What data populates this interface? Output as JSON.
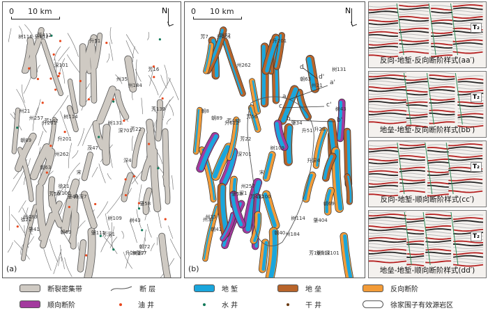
{
  "panel_a": {
    "label": "(a)",
    "scale": {
      "zero": "0",
      "distance": "10 km"
    },
    "north": "N",
    "wells": [
      "宋",
      "升201",
      "升612",
      "深4",
      "肇7",
      "深101",
      "升深7",
      "州262",
      "深100",
      "深701",
      "芳22",
      "升51",
      "树116",
      "升28",
      "升201",
      "树109",
      "茂47",
      "芳139",
      "芳16",
      "树114",
      "树117",
      "芳142",
      "芳深1",
      "芳56",
      "树43",
      "树131",
      "肇111",
      "州483",
      "州184",
      "徐22",
      "徐21",
      "肇40",
      "肇41",
      "肇58",
      "州35",
      "州21",
      "州257",
      "芳412",
      "朝63",
      "朝69",
      "朝89",
      "朝72"
    ]
  },
  "panel_b": {
    "label": "(b)",
    "scale": {
      "zero": "0",
      "distance": "10 km"
    },
    "north": "N",
    "section_marks": [
      "a",
      "a'",
      "b",
      "b'",
      "c",
      "c'",
      "d",
      "d'"
    ],
    "wells": [
      "宋",
      "升612",
      "升201",
      "升深4",
      "升深101",
      "州262",
      "深100",
      "深701",
      "深1",
      "升51",
      "升28",
      "升201",
      "芳7",
      "芳16",
      "芳22",
      "树114",
      "树109",
      "树43",
      "树131",
      "芳56",
      "肇111",
      "芳483",
      "州184",
      "肇58",
      "肇404",
      "肇34",
      "朝40",
      "州35",
      "州21",
      "州37",
      "州257",
      "芳412",
      "朝41",
      "朝69",
      "朝63",
      "朝8",
      "朝89",
      "朝72"
    ]
  },
  "seismic": [
    {
      "caption": "反向-地堑-反向断阶样式(aa′)",
      "tag": "T₂"
    },
    {
      "caption": "地垒-地堑-反向断阶样式(bb′)",
      "tag": "T₂"
    },
    {
      "caption": "反向-地堑-顺向断阶样式(cc′)",
      "tag": "T₂"
    },
    {
      "caption": "地垒-地堑-顺向断阶样式(dd′)",
      "tag": "T₂"
    }
  ],
  "legend": [
    {
      "label": "断裂密集带",
      "type": "zone",
      "color": "#cfcac3"
    },
    {
      "label": "断 层",
      "type": "fault",
      "color": "#555555"
    },
    {
      "label": "地 堑",
      "type": "zone",
      "color": "#1aa6dc"
    },
    {
      "label": "地 垒",
      "type": "zone",
      "color": "#b8642a"
    },
    {
      "label": "反向断阶",
      "type": "zone",
      "color": "#f29b38"
    },
    {
      "label": "顺向断阶",
      "type": "zone",
      "color": "#a33a9e"
    },
    {
      "label": "油 井",
      "type": "dot",
      "color": "#e8481e"
    },
    {
      "label": "水 井",
      "type": "dot",
      "color": "#137a5a"
    },
    {
      "label": "干 井",
      "type": "dot",
      "color": "#6b3a12"
    },
    {
      "label": "徐家围子有效源岩区",
      "type": "outline",
      "color": "#666666"
    }
  ]
}
